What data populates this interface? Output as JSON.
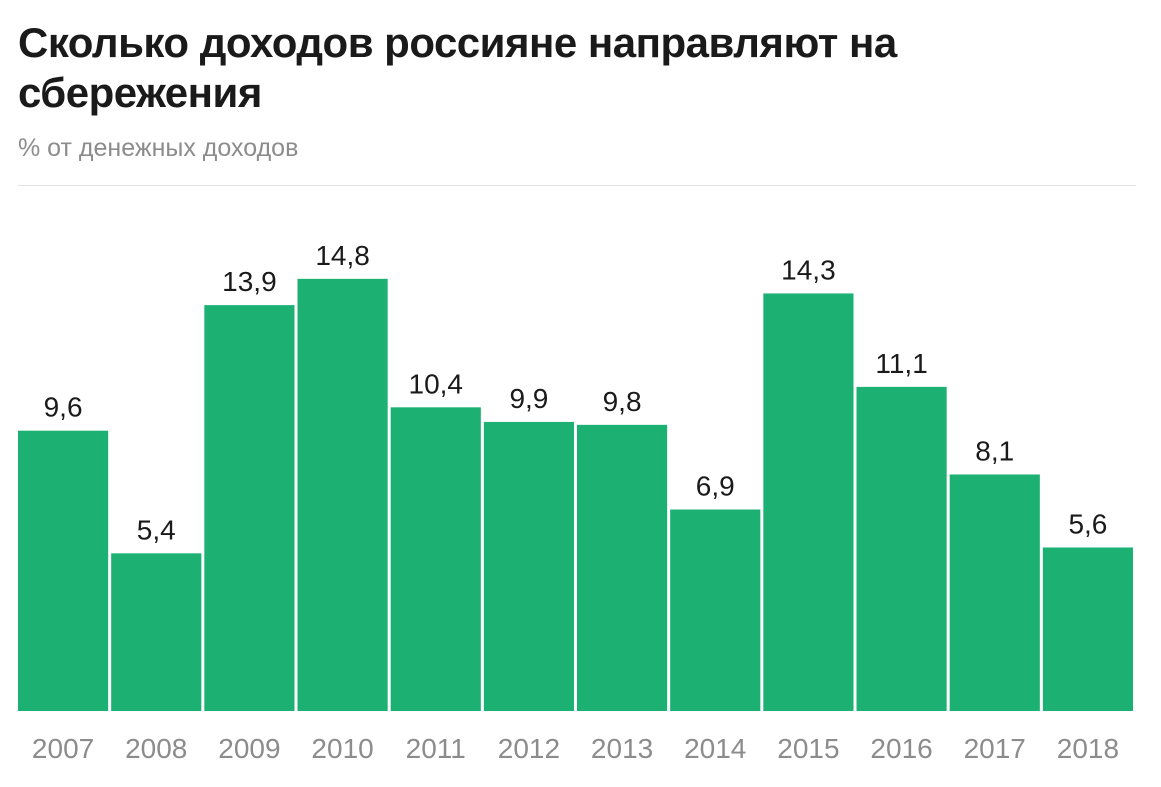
{
  "colors": {
    "bar": "#1cb173",
    "title": "#1a1a1a",
    "subtitle": "#8c8c8c",
    "tick": "#8c8c8c"
  },
  "chart_data": {
    "type": "bar",
    "title": "Сколько доходов россияне направляют на сбережения",
    "subtitle": "% от денежных доходов",
    "xlabel": "",
    "ylabel": "",
    "categories": [
      "2007",
      "2008",
      "2009",
      "2010",
      "2011",
      "2012",
      "2013",
      "2014",
      "2015",
      "2016",
      "2017",
      "2018"
    ],
    "values": [
      9.6,
      5.4,
      13.9,
      14.8,
      10.4,
      9.9,
      9.8,
      6.9,
      14.3,
      11.1,
      8.1,
      5.6
    ],
    "data_labels": [
      "9,6",
      "5,4",
      "13,9",
      "14,8",
      "10,4",
      "9,9",
      "9,8",
      "6,9",
      "14,3",
      "11,1",
      "8,1",
      "5,6"
    ],
    "ylim": [
      0,
      16
    ],
    "grid": false,
    "legend": "none"
  }
}
